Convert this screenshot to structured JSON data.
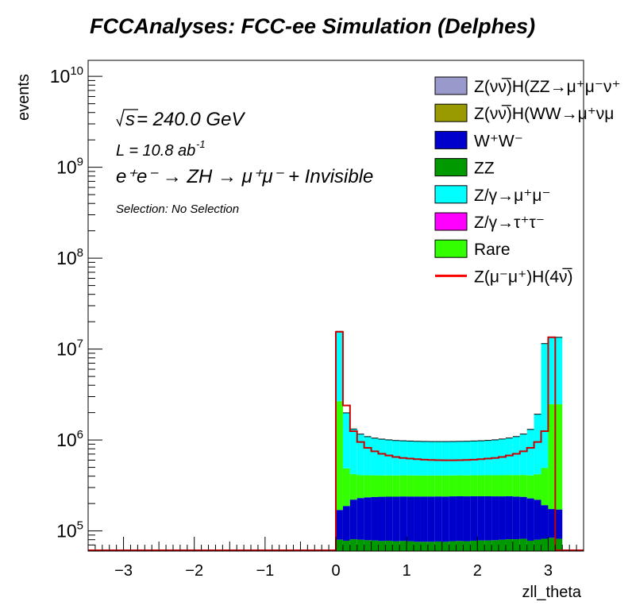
{
  "title": "FCCAnalyses: FCC-ee Simulation (Delphes)",
  "chart_data": {
    "type": "histogram-stacked",
    "title": "FCCAnalyses: FCC-ee Simulation (Delphes)",
    "xlabel": "zll_theta",
    "ylabel": "events",
    "xlim": [
      -3.5,
      3.5
    ],
    "ylim": [
      60000,
      15000000000
    ],
    "yscale": "log",
    "xticks": [
      -3,
      -2,
      -1,
      0,
      1,
      2,
      3
    ],
    "xtick_labels": [
      "−3",
      "−2",
      "−1",
      "0",
      "1",
      "2",
      "3"
    ],
    "yticks": [
      {
        "value": 100000,
        "label": "10",
        "exp": "5"
      },
      {
        "value": 1000000,
        "label": "10",
        "exp": "6"
      },
      {
        "value": 10000000,
        "label": "10",
        "exp": "7"
      },
      {
        "value": 100000000,
        "label": "10",
        "exp": "8"
      },
      {
        "value": 1000000000,
        "label": "10",
        "exp": "9"
      },
      {
        "value": 10000000000,
        "label": "10",
        "exp": "10"
      }
    ],
    "annotations": {
      "sqrt_s": "s",
      "energy": " = 240.0 GeV",
      "lumi": "L = 10.8 ab",
      "lumi_exp": "-1",
      "process": "e⁺e⁻ → ZH → μ⁺μ⁻ + Invisible",
      "selection": "Selection: No Selection"
    },
    "legend_position": "top-right",
    "legend": [
      {
        "label": "Z(νν̅)H(ZZ→μ⁺μ⁻ν⁺",
        "color": "#9999cc",
        "kind": "fill"
      },
      {
        "label": "Z(νν̅)H(WW→μ⁺νμ",
        "color": "#999900",
        "kind": "fill"
      },
      {
        "label": "W⁺W⁻",
        "color": "#0000cc",
        "kind": "fill"
      },
      {
        "label": "ZZ",
        "color": "#009900",
        "kind": "fill"
      },
      {
        "label": "Z/γ→μ⁺μ⁻",
        "color": "#00ffff",
        "kind": "fill"
      },
      {
        "label": "Z/γ→τ⁺τ⁻",
        "color": "#ff00ff",
        "kind": "fill"
      },
      {
        "label": "Rare",
        "color": "#33ff00",
        "kind": "fill"
      },
      {
        "label": "Z(μ⁻μ⁺)H(4ν̅)",
        "color": "#ff0000",
        "kind": "line"
      }
    ],
    "bins": {
      "x_start": 0.0,
      "bin_width": 0.1,
      "ZZ": [
        80000,
        78000,
        81000,
        80000,
        79000,
        78500,
        77500,
        78000,
        77000,
        77500,
        77000,
        76000,
        76000,
        76000,
        76500,
        76000,
        77000,
        77500,
        77000,
        78000,
        78500,
        78500,
        79000,
        80000,
        81000,
        81000,
        82000,
        78000,
        80000,
        82000,
        84000,
        82000
      ],
      "WW": [
        90000,
        110000,
        140000,
        150000,
        155000,
        158000,
        160000,
        160000,
        161000,
        162000,
        162000,
        163000,
        163000,
        163000,
        163000,
        163000,
        163000,
        163000,
        163000,
        163000,
        162000,
        162000,
        161000,
        160000,
        160000,
        158000,
        155000,
        150000,
        140000,
        110000,
        90000,
        90000
      ],
      "Rare": [
        2500000,
        300000,
        200000,
        180000,
        175000,
        172000,
        170000,
        170000,
        169000,
        169000,
        169000,
        168000,
        168000,
        168000,
        168000,
        168000,
        168000,
        168000,
        168000,
        168000,
        168500,
        169000,
        169000,
        170000,
        170000,
        172000,
        175000,
        180000,
        200000,
        300000,
        2300000,
        2300000
      ],
      "Zmumu": [
        13000000,
        1500000,
        900000,
        750000,
        680000,
        640000,
        615000,
        595000,
        580000,
        572000,
        566000,
        560000,
        557000,
        555000,
        554000,
        554000,
        555000,
        557000,
        560000,
        566000,
        572000,
        580000,
        595000,
        615000,
        640000,
        680000,
        750000,
        900000,
        1500000,
        11000000,
        11000000,
        11000000
      ],
      "Signal": [
        15500000,
        2400000,
        1250000,
        950000,
        820000,
        750000,
        705000,
        675000,
        650000,
        635000,
        625000,
        615000,
        608000,
        603000,
        600000,
        598000,
        598000,
        600000,
        603000,
        608000,
        615000,
        625000,
        635000,
        650000,
        675000,
        705000,
        750000,
        820000,
        950000,
        1250000,
        13500000,
        0
      ]
    }
  }
}
